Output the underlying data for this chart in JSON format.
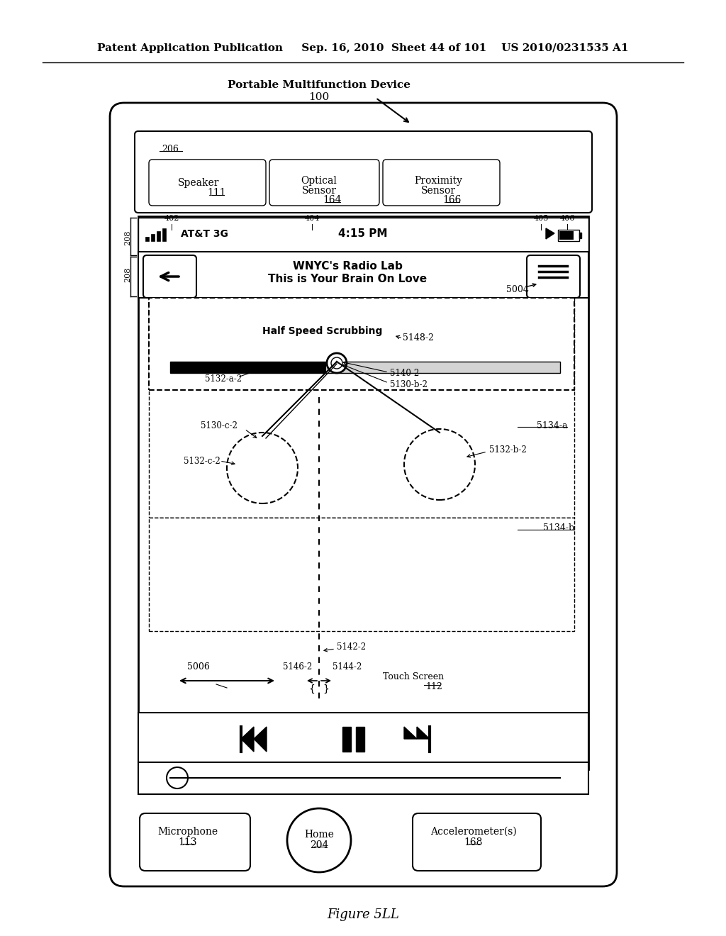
{
  "title_line1": "Patent Application Publication",
  "title_line2": "Sep. 16, 2010  Sheet 44 of 101    US 2010/0231535 A1",
  "device_label": "Portable Multifunction Device",
  "device_number": "100",
  "figure_label": "Figure 5LL",
  "bg_color": "#ffffff",
  "text_color": "#000000"
}
